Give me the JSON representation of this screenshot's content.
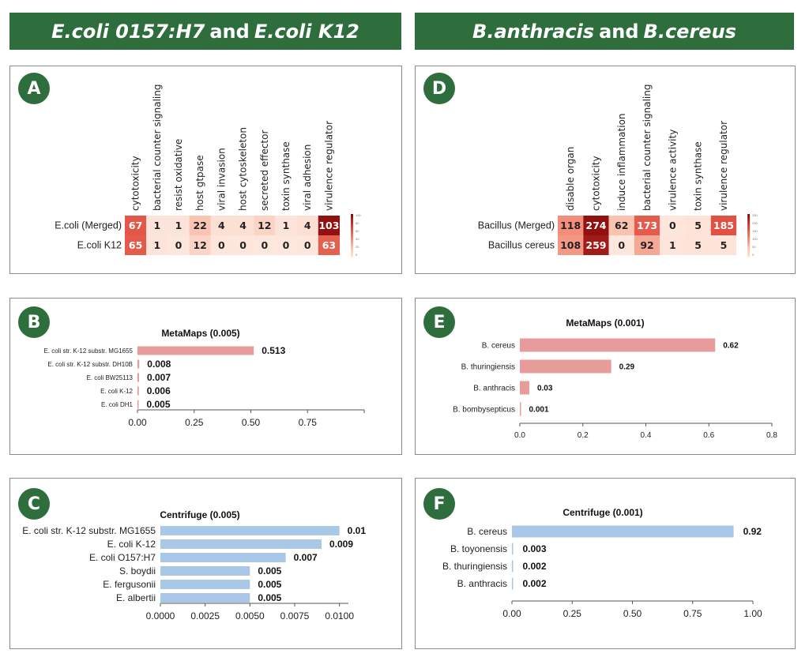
{
  "headers": {
    "left": {
      "italic_a": "E.coli 0157:H7",
      "conj": "and",
      "italic_b": "E.coli K12"
    },
    "right": {
      "italic_a": "B.anthracis",
      "conj": "and",
      "italic_b": "B.cereus"
    }
  },
  "badges": {
    "a": "A",
    "b": "B",
    "c": "C",
    "d": "D",
    "e": "E",
    "f": "F"
  },
  "colors": {
    "header_green": "#2e6e3d",
    "meta_bar": "#e89b9b",
    "centrifuge_bar": "#a9c8e8",
    "heat_low": "#fde3d8",
    "heat_high": "#8b0d0d"
  },
  "chart_data": [
    {
      "id": "A",
      "type": "heatmap",
      "columns": [
        "cytotoxicity",
        "bacterial counter signaling",
        "resist oxidative",
        "host gtpase",
        "viral invasion",
        "host cytoskeleton",
        "secreted effector",
        "toxin synthase",
        "viral adhesion",
        "virulence regulator"
      ],
      "rows": [
        "E.coli (Merged)",
        "E.coli K12"
      ],
      "values": [
        [
          67,
          1,
          1,
          22,
          4,
          4,
          12,
          1,
          4,
          103
        ],
        [
          65,
          1,
          0,
          12,
          0,
          0,
          0,
          0,
          0,
          63
        ]
      ],
      "colorbar_ticks": [
        "100",
        "80",
        "60",
        "40",
        "20",
        "0"
      ],
      "vmax": 105
    },
    {
      "id": "D",
      "type": "heatmap",
      "columns": [
        "disable organ",
        "cytotoxicity",
        "induce inflammation",
        "bacterial counter signaling",
        "virulence activity",
        "toxin synthase",
        "virulence regulator"
      ],
      "rows": [
        "Bacillus (Merged)",
        "Bacillus cereus"
      ],
      "values": [
        [
          118,
          274,
          62,
          173,
          0,
          5,
          185
        ],
        [
          108,
          259,
          0,
          92,
          1,
          5,
          5
        ]
      ],
      "colorbar_ticks": [
        "250",
        "200",
        "150",
        "100",
        "50",
        "0"
      ],
      "vmax": 280
    },
    {
      "id": "B",
      "type": "bar",
      "orientation": "horizontal",
      "title": "MetaMaps (0.005)",
      "categories": [
        "E. coli str. K-12 substr. MG1655",
        "E. coli str. K-12 substr. DH10B",
        "E. coli BW25113",
        "E. coli K-12",
        "E. coli DH1"
      ],
      "values": [
        0.513,
        0.008,
        0.007,
        0.006,
        0.005
      ],
      "labels": [
        "0.513",
        "0.008",
        "0.007",
        "0.006",
        "0.005"
      ],
      "xlim": [
        0,
        1.0
      ],
      "xticks": [
        0,
        0.25,
        0.5,
        0.75
      ],
      "xtick_labels": [
        "0.00",
        "0.25",
        "0.50",
        "0.75"
      ]
    },
    {
      "id": "C",
      "type": "bar",
      "orientation": "horizontal",
      "title": "Centrifuge (0.005)",
      "categories": [
        "E. coli str. K-12 substr. MG1655",
        "E. coli K-12",
        "E. coli O157:H7",
        "S. boydii",
        "E. fergusonii",
        "E. albertii"
      ],
      "values": [
        0.01,
        0.009,
        0.007,
        0.005,
        0.005,
        0.005
      ],
      "labels": [
        "0.01",
        "0.009",
        "0.007",
        "0.005",
        "0.005",
        "0.005"
      ],
      "xlim": [
        0,
        0.0105
      ],
      "xticks": [
        0,
        0.0025,
        0.005,
        0.0075,
        0.01
      ],
      "xtick_labels": [
        "0.0000",
        "0.0025",
        "0.0050",
        "0.0075",
        "0.0100"
      ]
    },
    {
      "id": "E",
      "type": "bar",
      "orientation": "horizontal",
      "title": "MetaMaps (0.001)",
      "categories": [
        "B. cereus",
        "B. thuringiensis",
        "B. anthracis",
        "B. bombysepticus"
      ],
      "values": [
        0.62,
        0.29,
        0.03,
        0.001
      ],
      "labels": [
        "0.62",
        "0.29",
        "0.03",
        "0.001"
      ],
      "xlim": [
        0,
        0.8
      ],
      "xticks": [
        0,
        0.2,
        0.4,
        0.6,
        0.8
      ],
      "xtick_labels": [
        "0.0",
        "0.2",
        "0.4",
        "0.6",
        "0.8"
      ]
    },
    {
      "id": "F",
      "type": "bar",
      "orientation": "horizontal",
      "title": "Centrifuge (0.001)",
      "categories": [
        "B. cereus",
        "B. toyonensis",
        "B. thuringiensis",
        "B. anthracis"
      ],
      "values": [
        0.92,
        0.003,
        0.002,
        0.002
      ],
      "labels": [
        "0.92",
        "0.003",
        "0.002",
        "0.002"
      ],
      "xlim": [
        0,
        1.0
      ],
      "xticks": [
        0,
        0.25,
        0.5,
        0.75,
        1.0
      ],
      "xtick_labels": [
        "0.00",
        "0.25",
        "0.50",
        "0.75",
        "1.00"
      ]
    }
  ]
}
